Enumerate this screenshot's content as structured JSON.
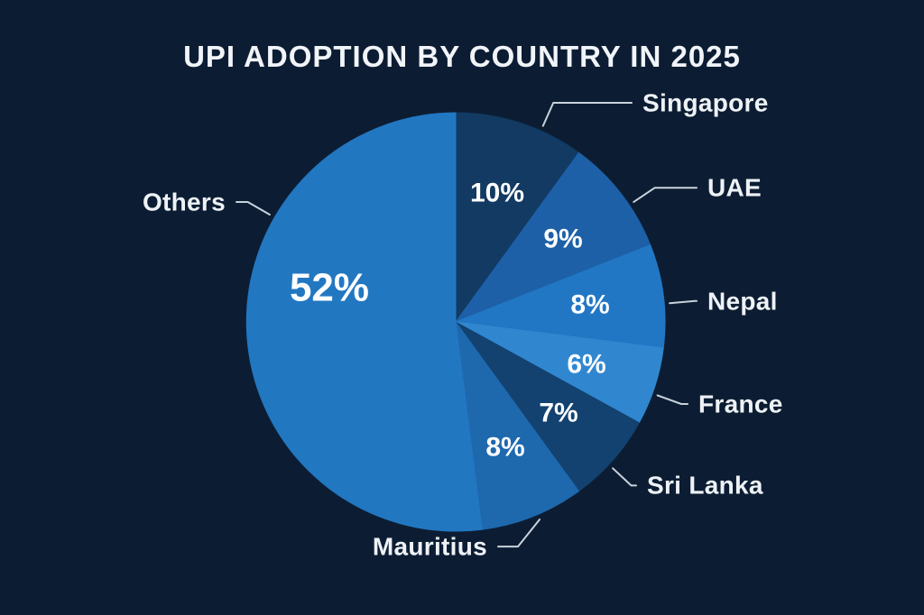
{
  "chart_data": {
    "type": "pie",
    "title": "UPI ADOPTION BY COUNTRY IN 2025",
    "unit": "percent",
    "total": 100,
    "start_angle_deg_from_top_clockwise": 0,
    "slices": [
      {
        "label": "Singapore",
        "value": 10,
        "color": "#123a62"
      },
      {
        "label": "UAE",
        "value": 9,
        "color": "#1d60a7"
      },
      {
        "label": "Nepal",
        "value": 8,
        "color": "#2277c4"
      },
      {
        "label": "France",
        "value": 6,
        "color": "#3087d0"
      },
      {
        "label": "Sri Lanka",
        "value": 7,
        "color": "#134270"
      },
      {
        "label": "Mauritius",
        "value": 8,
        "color": "#1e68ae"
      },
      {
        "label": "Others",
        "value": 52,
        "color": "#2277c1"
      }
    ],
    "value_label_format": "{value}%",
    "labels_outside_with_leader_lines": true,
    "legend_position": "none",
    "background": "#0c1d33",
    "title_color": "#f1f4f8",
    "value_label_color": "#fdfeff",
    "category_label_color": "#eef2f6",
    "leader_line_color": "#c9d2dc"
  }
}
